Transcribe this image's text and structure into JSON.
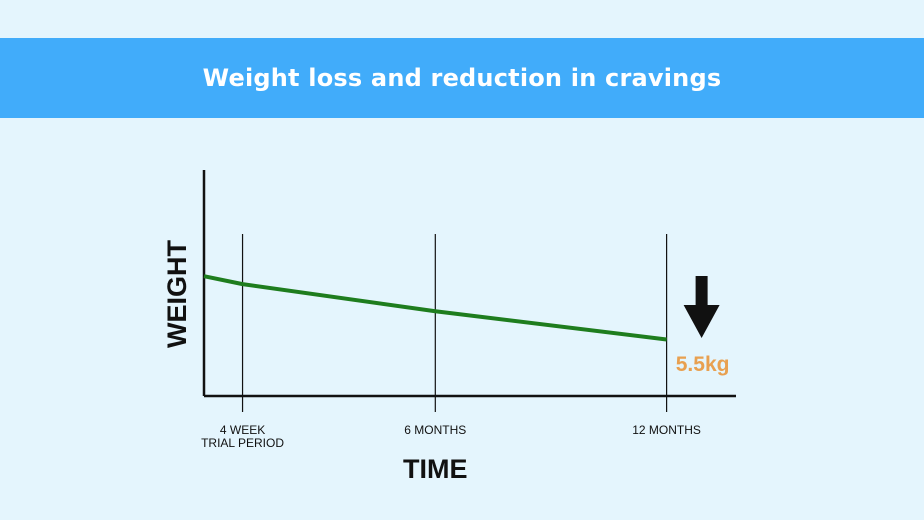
{
  "header": {
    "title": "Weight loss and reduction in cravings"
  },
  "chart_data": {
    "type": "line",
    "ylabel": "WEIGHT",
    "xlabel": "TIME",
    "x": [
      0,
      1,
      6,
      12
    ],
    "xlim": [
      0,
      13.8
    ],
    "ylim": [
      0,
      100
    ],
    "x_ticks": [
      {
        "x": 1,
        "lines": [
          "4 WEEK",
          "TRIAL PERIOD"
        ]
      },
      {
        "x": 6,
        "lines": [
          "6 MONTHS"
        ]
      },
      {
        "x": 12,
        "lines": [
          "12 MONTHS"
        ]
      }
    ],
    "series": [
      {
        "values": [
          53,
          49.5,
          37.5,
          25
        ]
      }
    ],
    "vertical_gridlines": [
      1,
      6,
      12
    ],
    "annotation": {
      "text": "5.5kg",
      "arrow": "down",
      "x": 12
    },
    "colors": {
      "line": "#1e7d1e",
      "annotation": "#e8a050",
      "axis": "#111111",
      "banner": "#41acfa",
      "background": "#e4f5fd"
    }
  }
}
